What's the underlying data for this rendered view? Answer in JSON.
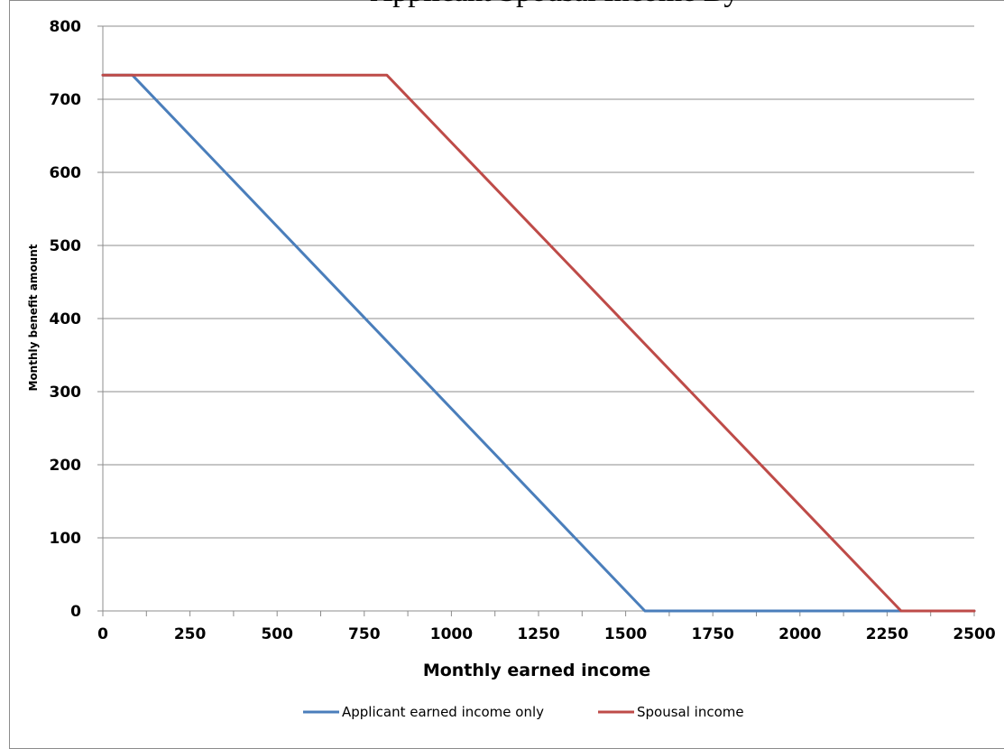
{
  "chart_data": {
    "type": "line",
    "title": "Applicant Spousal Income By",
    "xlabel": "Monthly earned income",
    "ylabel": "Monthly benefit amount",
    "xlim": [
      0,
      2500
    ],
    "ylim": [
      0,
      800
    ],
    "xticks": [
      0,
      250,
      500,
      750,
      1000,
      1250,
      1500,
      1750,
      2000,
      2250,
      2500
    ],
    "yticks": [
      0,
      100,
      200,
      300,
      400,
      500,
      600,
      700,
      800
    ],
    "grid": "horizontal",
    "legend_position": "bottom",
    "series": [
      {
        "name": "Applicant earned income only",
        "color": "#4a7ebb",
        "points": [
          [
            0,
            733
          ],
          [
            85,
            733
          ],
          [
            1555,
            0
          ],
          [
            2500,
            0
          ]
        ]
      },
      {
        "name": "Spousal income",
        "color": "#be4b48",
        "points": [
          [
            0,
            733
          ],
          [
            815,
            733
          ],
          [
            2290,
            0
          ],
          [
            2500,
            0
          ]
        ]
      }
    ]
  }
}
